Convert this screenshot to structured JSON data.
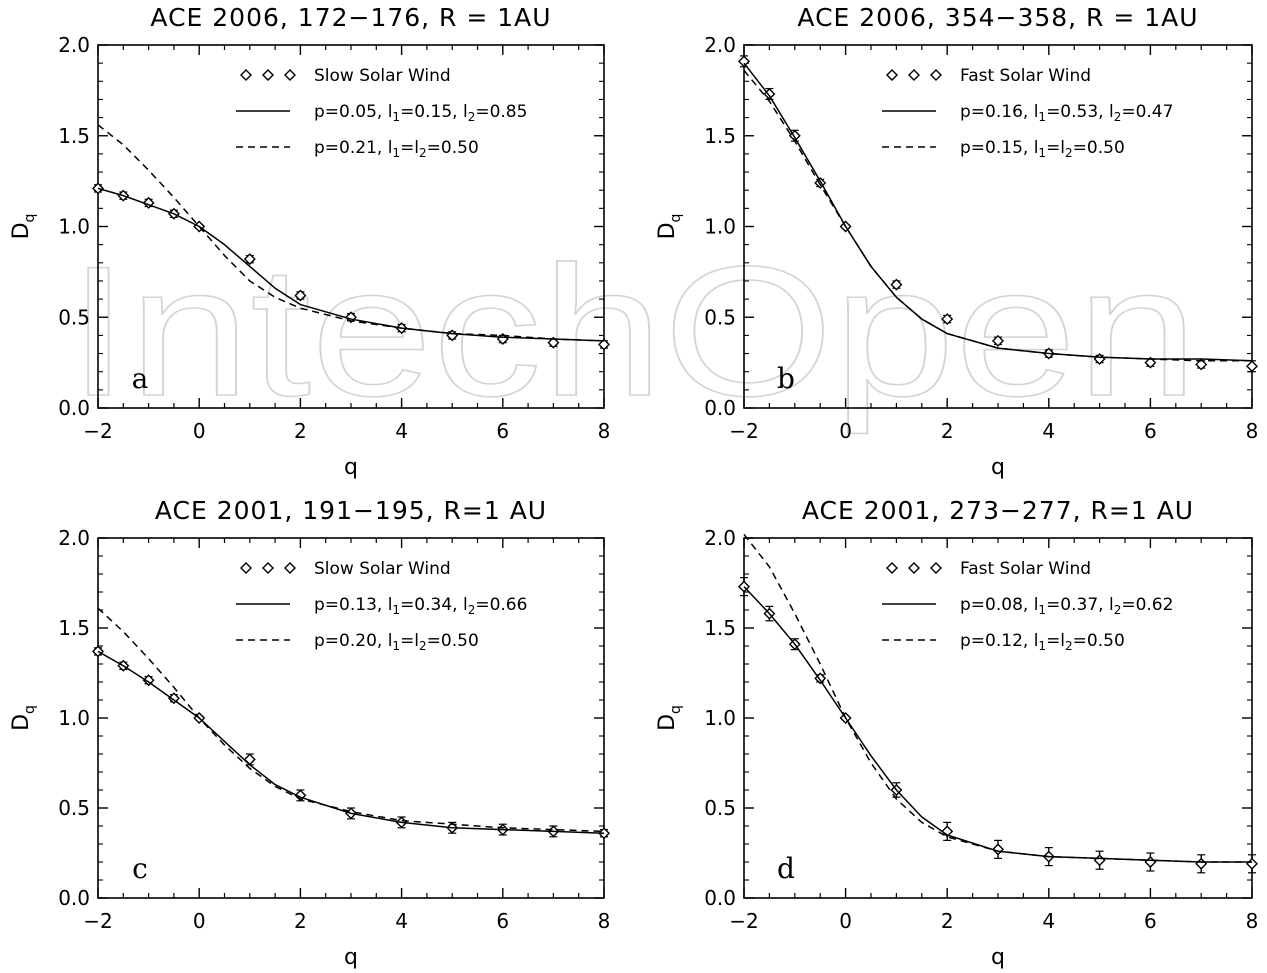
{
  "watermark": "IntechOpen",
  "axis_label_x": "q",
  "axis_label_y_main": "D",
  "axis_label_y_sub": "q",
  "chart_data": [
    {
      "type": "line",
      "panel": "a",
      "title": "ACE 2006, 172−176, R = 1AU",
      "xlabel": "q",
      "ylabel": "Dq",
      "xlim": [
        -2,
        8
      ],
      "ylim": [
        0,
        2
      ],
      "xticks": [
        -2,
        0,
        2,
        4,
        6,
        8
      ],
      "yticks": [
        0.0,
        0.5,
        1.0,
        1.5,
        2.0
      ],
      "legend_placement": "top-right",
      "legend": [
        {
          "marker": "diamonds",
          "parts": [
            {
              "t": "Slow Solar Wind"
            }
          ]
        },
        {
          "marker": "solid",
          "parts": [
            {
              "t": "p=0.05, l"
            },
            {
              "t": "1",
              "sub": true
            },
            {
              "t": "=0.15, l"
            },
            {
              "t": "2",
              "sub": true
            },
            {
              "t": "=0.85"
            }
          ]
        },
        {
          "marker": "dashed",
          "parts": [
            {
              "t": "p=0.21, l"
            },
            {
              "t": "1",
              "sub": true
            },
            {
              "t": "=l"
            },
            {
              "t": "2",
              "sub": true
            },
            {
              "t": "=0.50"
            }
          ]
        }
      ],
      "series": [
        {
          "style": "diamonds",
          "name": "Slow Solar Wind",
          "x": [
            -2,
            -1.5,
            -1,
            -0.5,
            0,
            1,
            2,
            3,
            4,
            5,
            6,
            7,
            8
          ],
          "y": [
            1.21,
            1.17,
            1.13,
            1.07,
            1.0,
            0.82,
            0.62,
            0.5,
            0.44,
            0.4,
            0.38,
            0.36,
            0.35
          ],
          "err": [
            0.02,
            0.02,
            0.02,
            0.02,
            0.01,
            0.02,
            0.02,
            0.02,
            0.02,
            0.02,
            0.02,
            0.02,
            0.02
          ]
        },
        {
          "style": "solid",
          "x": [
            -2,
            -1.5,
            -1,
            -0.5,
            0,
            0.5,
            1,
            1.5,
            2,
            3,
            4,
            5,
            6,
            7,
            8
          ],
          "y": [
            1.21,
            1.17,
            1.12,
            1.07,
            1.0,
            0.9,
            0.78,
            0.66,
            0.57,
            0.49,
            0.44,
            0.41,
            0.39,
            0.38,
            0.37
          ]
        },
        {
          "style": "dashed",
          "x": [
            -2,
            -1.5,
            -1,
            -0.5,
            0,
            0.5,
            1,
            1.5,
            2,
            3,
            4,
            5,
            6,
            7,
            8
          ],
          "y": [
            1.56,
            1.45,
            1.31,
            1.16,
            1.0,
            0.84,
            0.7,
            0.61,
            0.55,
            0.48,
            0.44,
            0.41,
            0.4,
            0.38,
            0.37
          ]
        }
      ]
    },
    {
      "type": "line",
      "panel": "b",
      "title": "ACE 2006, 354−358, R = 1AU",
      "xlabel": "q",
      "ylabel": "Dq",
      "xlim": [
        -2,
        8
      ],
      "ylim": [
        0,
        2
      ],
      "xticks": [
        -2,
        0,
        2,
        4,
        6,
        8
      ],
      "yticks": [
        0.0,
        0.5,
        1.0,
        1.5,
        2.0
      ],
      "legend_placement": "top-right",
      "legend": [
        {
          "marker": "diamonds",
          "parts": [
            {
              "t": "Fast Solar Wind"
            }
          ]
        },
        {
          "marker": "solid",
          "parts": [
            {
              "t": "p=0.16, l"
            },
            {
              "t": "1",
              "sub": true
            },
            {
              "t": "=0.53, l"
            },
            {
              "t": "2",
              "sub": true
            },
            {
              "t": "=0.47"
            }
          ]
        },
        {
          "marker": "dashed",
          "parts": [
            {
              "t": "p=0.15, l"
            },
            {
              "t": "1",
              "sub": true
            },
            {
              "t": "=l"
            },
            {
              "t": "2",
              "sub": true
            },
            {
              "t": "=0.50"
            }
          ]
        }
      ],
      "series": [
        {
          "style": "diamonds",
          "name": "Fast Solar Wind",
          "x": [
            -2,
            -1.5,
            -1,
            -0.5,
            0,
            1,
            2,
            3,
            4,
            5,
            6,
            7,
            8
          ],
          "y": [
            1.91,
            1.73,
            1.5,
            1.24,
            1.0,
            0.68,
            0.49,
            0.37,
            0.3,
            0.27,
            0.25,
            0.24,
            0.23
          ],
          "err": [
            0.03,
            0.03,
            0.03,
            0.02,
            0.01,
            0.02,
            0.02,
            0.02,
            0.02,
            0.02,
            0.02,
            0.02,
            0.03
          ]
        },
        {
          "style": "solid",
          "x": [
            -2,
            -1.5,
            -1,
            -0.5,
            0,
            0.5,
            1,
            1.5,
            2,
            3,
            4,
            5,
            6,
            7,
            8
          ],
          "y": [
            1.9,
            1.72,
            1.49,
            1.25,
            1.0,
            0.78,
            0.61,
            0.49,
            0.41,
            0.33,
            0.3,
            0.28,
            0.27,
            0.27,
            0.26
          ]
        },
        {
          "style": "dashed",
          "x": [
            -2,
            -1.5,
            -1,
            -0.5,
            0,
            0.5,
            1,
            1.5,
            2,
            3,
            4,
            5,
            6,
            7,
            8
          ],
          "y": [
            1.86,
            1.69,
            1.47,
            1.23,
            1.0,
            0.78,
            0.61,
            0.49,
            0.41,
            0.33,
            0.3,
            0.28,
            0.27,
            0.26,
            0.26
          ]
        }
      ]
    },
    {
      "type": "line",
      "panel": "c",
      "title": "ACE 2001, 191−195, R=1 AU",
      "xlabel": "q",
      "ylabel": "Dq",
      "xlim": [
        -2,
        8
      ],
      "ylim": [
        0,
        2
      ],
      "xticks": [
        -2,
        0,
        2,
        4,
        6,
        8
      ],
      "yticks": [
        0.0,
        0.5,
        1.0,
        1.5,
        2.0
      ],
      "legend_placement": "top-right",
      "legend": [
        {
          "marker": "diamonds",
          "parts": [
            {
              "t": "Slow Solar Wind"
            }
          ]
        },
        {
          "marker": "solid",
          "parts": [
            {
              "t": "p=0.13, l"
            },
            {
              "t": "1",
              "sub": true
            },
            {
              "t": "=0.34, l"
            },
            {
              "t": "2",
              "sub": true
            },
            {
              "t": "=0.66"
            }
          ]
        },
        {
          "marker": "dashed",
          "parts": [
            {
              "t": "p=0.20, l"
            },
            {
              "t": "1",
              "sub": true
            },
            {
              "t": "=l"
            },
            {
              "t": "2",
              "sub": true
            },
            {
              "t": "=0.50"
            }
          ]
        }
      ],
      "series": [
        {
          "style": "diamonds",
          "name": "Slow Solar Wind",
          "x": [
            -2,
            -1.5,
            -1,
            -0.5,
            0,
            1,
            2,
            3,
            4,
            5,
            6,
            7,
            8
          ],
          "y": [
            1.37,
            1.29,
            1.21,
            1.11,
            1.0,
            0.77,
            0.57,
            0.47,
            0.42,
            0.39,
            0.38,
            0.37,
            0.36
          ],
          "err": [
            0.02,
            0.02,
            0.02,
            0.02,
            0.01,
            0.03,
            0.03,
            0.03,
            0.03,
            0.03,
            0.03,
            0.03,
            0.02
          ]
        },
        {
          "style": "solid",
          "x": [
            -2,
            -1.5,
            -1,
            -0.5,
            0,
            0.5,
            1,
            1.5,
            2,
            3,
            4,
            5,
            6,
            7,
            8
          ],
          "y": [
            1.37,
            1.29,
            1.2,
            1.1,
            1.0,
            0.87,
            0.74,
            0.63,
            0.56,
            0.47,
            0.42,
            0.39,
            0.38,
            0.37,
            0.36
          ]
        },
        {
          "style": "dashed",
          "x": [
            -2,
            -1.5,
            -1,
            -0.5,
            0,
            0.5,
            1,
            1.5,
            2,
            3,
            4,
            5,
            6,
            7,
            8
          ],
          "y": [
            1.61,
            1.48,
            1.33,
            1.17,
            1.0,
            0.85,
            0.72,
            0.62,
            0.55,
            0.48,
            0.43,
            0.41,
            0.39,
            0.38,
            0.37
          ]
        }
      ]
    },
    {
      "type": "line",
      "panel": "d",
      "title": "ACE 2001, 273−277, R=1 AU",
      "xlabel": "q",
      "ylabel": "Dq",
      "xlim": [
        -2,
        8
      ],
      "ylim": [
        0,
        2
      ],
      "xticks": [
        -2,
        0,
        2,
        4,
        6,
        8
      ],
      "yticks": [
        0.0,
        0.5,
        1.0,
        1.5,
        2.0
      ],
      "legend_placement": "top-right",
      "legend": [
        {
          "marker": "diamonds",
          "parts": [
            {
              "t": "Fast Solar Wind"
            }
          ]
        },
        {
          "marker": "solid",
          "parts": [
            {
              "t": "p=0.08, l"
            },
            {
              "t": "1",
              "sub": true
            },
            {
              "t": "=0.37, l"
            },
            {
              "t": "2",
              "sub": true
            },
            {
              "t": "=0.62"
            }
          ]
        },
        {
          "marker": "dashed",
          "parts": [
            {
              "t": "p=0.12, l"
            },
            {
              "t": "1",
              "sub": true
            },
            {
              "t": "=l"
            },
            {
              "t": "2",
              "sub": true
            },
            {
              "t": "=0.50"
            }
          ]
        }
      ],
      "series": [
        {
          "style": "diamonds",
          "name": "Fast Solar Wind",
          "x": [
            -2,
            -1.5,
            -1,
            -0.5,
            0,
            1,
            2,
            3,
            4,
            5,
            6,
            7,
            8
          ],
          "y": [
            1.73,
            1.58,
            1.41,
            1.22,
            1.0,
            0.6,
            0.37,
            0.27,
            0.23,
            0.21,
            0.2,
            0.19,
            0.19
          ],
          "err": [
            0.05,
            0.04,
            0.03,
            0.02,
            0.01,
            0.04,
            0.05,
            0.05,
            0.05,
            0.05,
            0.05,
            0.05,
            0.05
          ]
        },
        {
          "style": "solid",
          "x": [
            -2,
            -1.5,
            -1,
            -0.5,
            0,
            0.5,
            1,
            1.5,
            2,
            3,
            4,
            5,
            6,
            7,
            8
          ],
          "y": [
            1.73,
            1.58,
            1.41,
            1.21,
            1.0,
            0.79,
            0.6,
            0.45,
            0.35,
            0.26,
            0.23,
            0.22,
            0.21,
            0.2,
            0.2
          ]
        },
        {
          "style": "dashed",
          "x": [
            -2,
            -1.5,
            -1,
            -0.5,
            0,
            0.5,
            1,
            1.5,
            2,
            3,
            4,
            5,
            6,
            7,
            8
          ],
          "y": [
            2.08,
            1.84,
            1.58,
            1.3,
            1.0,
            0.75,
            0.55,
            0.42,
            0.34,
            0.26,
            0.23,
            0.22,
            0.21,
            0.2,
            0.2
          ]
        }
      ]
    }
  ]
}
